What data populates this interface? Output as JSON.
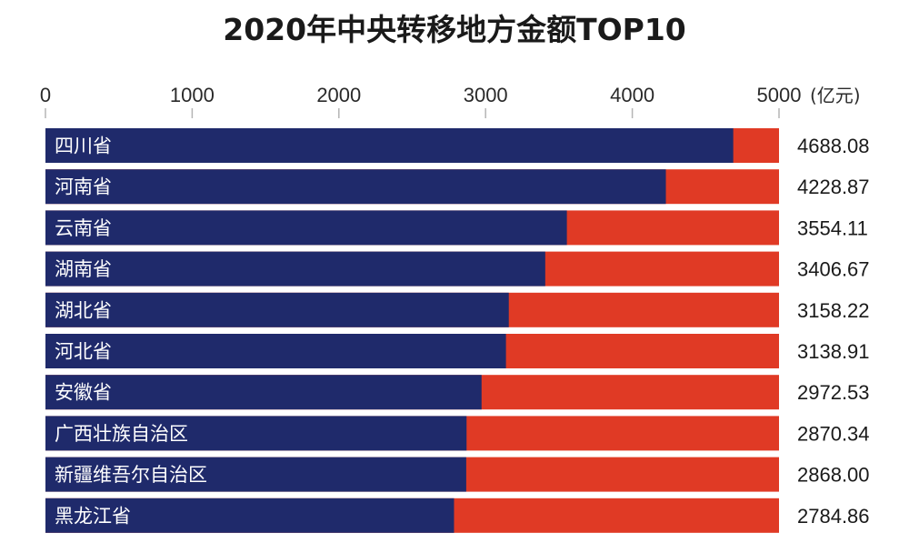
{
  "chart_data": {
    "type": "bar",
    "orientation": "horizontal",
    "title": "2020年中央转移地方金额TOP10",
    "unit_label": "(亿元)",
    "xlim": [
      0,
      5000
    ],
    "ticks": [
      0,
      1000,
      2000,
      3000,
      4000,
      5000
    ],
    "grid": false,
    "categories": [
      "四川省",
      "河南省",
      "云南省",
      "湖南省",
      "湖北省",
      "河北省",
      "安徽省",
      "广西壮族自治区",
      "新疆维吾尔自治区",
      "黑龙江省"
    ],
    "values": [
      4688.08,
      4228.87,
      3554.11,
      3406.67,
      3158.22,
      3138.91,
      2972.53,
      2870.34,
      2868.0,
      2784.86
    ],
    "value_labels": [
      "4688.08",
      "4228.87",
      "3554.11",
      "3406.67",
      "3158.22",
      "3138.91",
      "2972.53",
      "2870.34",
      "2868.00",
      "2784.86"
    ]
  },
  "colors": {
    "bar_fill": "#1f2a6b",
    "bar_background": "#e03a25",
    "title": "#1a1a1a",
    "axis_text": "#2a2a2a",
    "label_text": "#ffffff"
  }
}
